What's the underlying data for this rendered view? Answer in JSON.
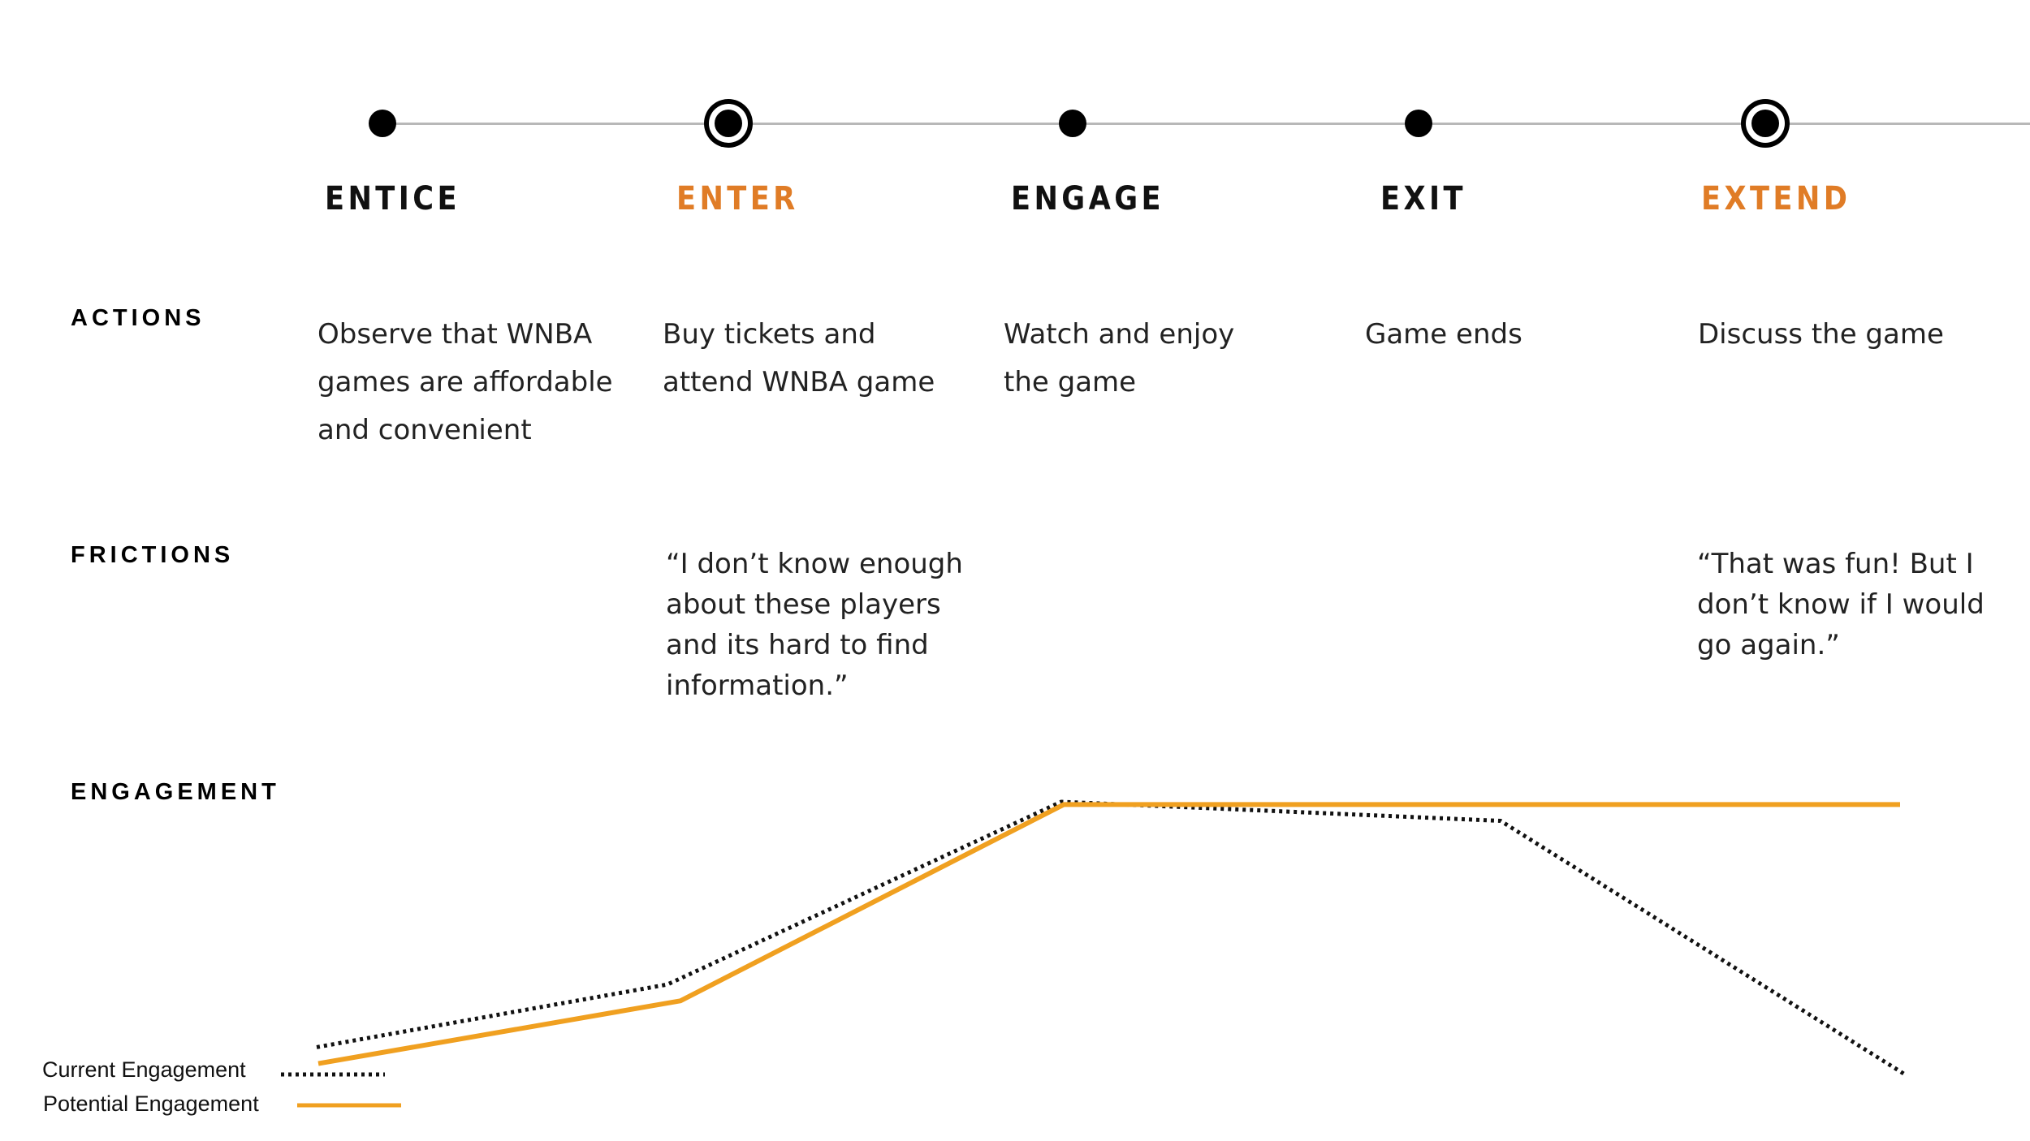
{
  "timeline": {
    "stages": [
      {
        "label": "ENTICE",
        "highlight": false,
        "marker": "dot"
      },
      {
        "label": "ENTER",
        "highlight": true,
        "marker": "ring"
      },
      {
        "label": "ENGAGE",
        "highlight": false,
        "marker": "dot"
      },
      {
        "label": "EXIT",
        "highlight": false,
        "marker": "dot"
      },
      {
        "label": "EXTEND",
        "highlight": true,
        "marker": "ring"
      }
    ]
  },
  "rows": {
    "actions_label": "ACTIONS",
    "frictions_label": "FRICTIONS",
    "engagement_label": "ENGAGEMENT"
  },
  "actions": [
    "Observe that WNBA\ngames are affordable\nand convenient",
    "Buy tickets and\nattend WNBA game",
    "Watch and enjoy\nthe game",
    "Game ends",
    "Discuss the game"
  ],
  "frictions": {
    "enter": "“I don’t know enough\nabout these players\nand its hard to find\ninformation.”",
    "extend": "“That was fun! But I\ndon’t know if I would\ngo again.”"
  },
  "legend": {
    "current": "Current  Engagement",
    "potential": "Potential Engagement"
  },
  "colors": {
    "accent": "#e07c26",
    "potential_line": "#f0a020",
    "current_line": "#111111",
    "timeline": "#b8b8b8"
  },
  "chart_data": {
    "type": "line",
    "x": [
      "ENTICE",
      "ENTER",
      "ENGAGE",
      "EXIT",
      "EXTEND"
    ],
    "ylim": [
      0,
      100
    ],
    "series": [
      {
        "name": "Current  Engagement",
        "style": "dotted",
        "values": [
          10,
          33,
          100,
          93,
          0
        ]
      },
      {
        "name": "Potential Engagement",
        "style": "solid",
        "values": [
          4,
          27,
          99,
          99,
          99
        ]
      }
    ]
  }
}
